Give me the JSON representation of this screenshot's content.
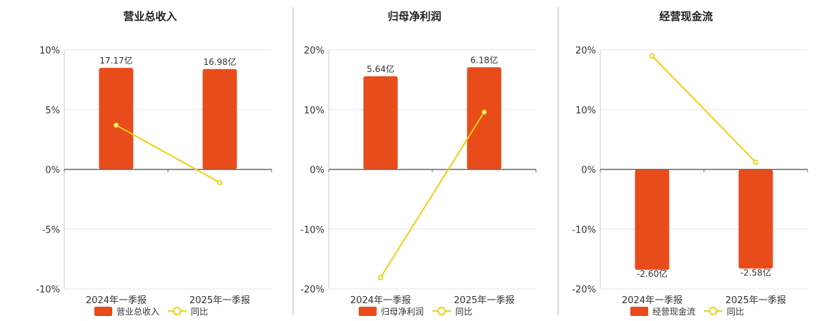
{
  "colors": {
    "bar": "#e84c1a",
    "line": "#f2cf14",
    "axis": "#666666",
    "grid": "#e6e6e6",
    "divider": "#b5b5b5"
  },
  "chart_data": [
    {
      "type": "bar",
      "title": "营业总收入",
      "categories": [
        "2024年一季报",
        "2025年一季报"
      ],
      "yticks": [
        "10%",
        "5%",
        "0%",
        "-5%",
        "-10%"
      ],
      "ylim": [
        -10,
        10
      ],
      "grid": true,
      "legend": "bottom",
      "series": [
        {
          "name": "营业总收入",
          "kind": "bar",
          "values": [
            8.5,
            8.4
          ],
          "labels": [
            "17.17亿",
            "16.98亿"
          ]
        },
        {
          "name": "同比",
          "kind": "line",
          "values": [
            3.7,
            -1.1
          ]
        }
      ]
    },
    {
      "type": "bar",
      "title": "归母净利润",
      "categories": [
        "2024年一季报",
        "2025年一季报"
      ],
      "yticks": [
        "20%",
        "10%",
        "0%",
        "-10%",
        "-20%"
      ],
      "ylim": [
        -20,
        20
      ],
      "grid": true,
      "legend": "bottom",
      "series": [
        {
          "name": "归母净利润",
          "kind": "bar",
          "values": [
            15.6,
            17.1
          ],
          "labels": [
            "5.64亿",
            "6.18亿"
          ]
        },
        {
          "name": "同比",
          "kind": "line",
          "values": [
            -18.1,
            9.6
          ]
        }
      ]
    },
    {
      "type": "bar",
      "title": "经营现金流",
      "categories": [
        "2024年一季报",
        "2025年一季报"
      ],
      "yticks": [
        "20%",
        "10%",
        "0%",
        "-10%",
        "-20%"
      ],
      "ylim": [
        -20,
        20
      ],
      "grid": true,
      "legend": "bottom",
      "series": [
        {
          "name": "经营现金流",
          "kind": "bar",
          "values": [
            -16.8,
            -16.6
          ],
          "labels": [
            "-2.60亿",
            "-2.58亿"
          ]
        },
        {
          "name": "同比",
          "kind": "line",
          "values": [
            19.0,
            1.2
          ]
        }
      ]
    }
  ]
}
